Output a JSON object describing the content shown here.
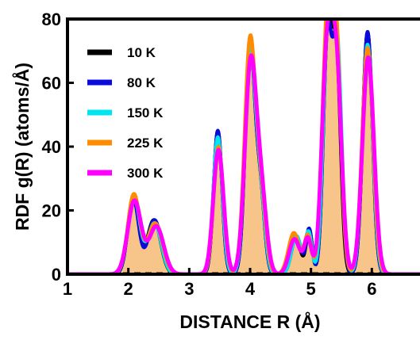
{
  "chart_data": {
    "type": "area",
    "xlabel": "DISTANCE R (Å)",
    "ylabel": "RDF g(R) (atoms/Å)",
    "xlim": [
      1,
      6.5
    ],
    "ylim": [
      0,
      80
    ],
    "x_ticks": [
      "1",
      "2",
      "3",
      "4",
      "5",
      "6"
    ],
    "y_ticks": [
      "0",
      "20",
      "40",
      "60",
      "80"
    ],
    "grid": false,
    "legend_position": "top-left",
    "fill_color": "#f7c48a",
    "series": [
      {
        "name": "10 K",
        "color": "#000000",
        "peaks": [
          [
            2.08,
            24,
            0.09
          ],
          [
            2.42,
            17,
            0.11
          ],
          [
            3.47,
            45,
            0.07
          ],
          [
            4.0,
            72,
            0.08
          ],
          [
            4.17,
            25,
            0.07
          ],
          [
            4.75,
            12,
            0.08
          ],
          [
            4.97,
            14,
            0.05
          ],
          [
            5.27,
            73,
            0.07
          ],
          [
            5.42,
            66,
            0.07
          ],
          [
            5.93,
            76,
            0.08
          ]
        ]
      },
      {
        "name": "80 K",
        "color": "#0a0adc",
        "peaks": [
          [
            2.08,
            24,
            0.09
          ],
          [
            2.43,
            17,
            0.11
          ],
          [
            3.47,
            45,
            0.07
          ],
          [
            4.0,
            72,
            0.08
          ],
          [
            4.17,
            25,
            0.07
          ],
          [
            4.76,
            12,
            0.08
          ],
          [
            4.97,
            14,
            0.05
          ],
          [
            5.27,
            73,
            0.07
          ],
          [
            5.43,
            70,
            0.07
          ],
          [
            5.93,
            76,
            0.08
          ]
        ]
      },
      {
        "name": "150 K",
        "color": "#00e5ee",
        "peaks": [
          [
            2.09,
            24,
            0.1
          ],
          [
            2.43,
            16,
            0.11
          ],
          [
            3.47,
            43,
            0.075
          ],
          [
            4.0,
            70,
            0.085
          ],
          [
            4.17,
            24,
            0.075
          ],
          [
            4.76,
            12,
            0.08
          ],
          [
            4.96,
            13,
            0.055
          ],
          [
            5.27,
            72,
            0.075
          ],
          [
            5.43,
            70,
            0.075
          ],
          [
            5.93,
            72,
            0.085
          ]
        ]
      },
      {
        "name": "225 K",
        "color": "#ff8c00",
        "peaks": [
          [
            2.09,
            25,
            0.1
          ],
          [
            2.44,
            16,
            0.12
          ],
          [
            3.48,
            40,
            0.08
          ],
          [
            4.0,
            73,
            0.09
          ],
          [
            4.18,
            23,
            0.08
          ],
          [
            4.72,
            13,
            0.09
          ],
          [
            4.95,
            12,
            0.06
          ],
          [
            5.26,
            73,
            0.08
          ],
          [
            5.41,
            73,
            0.08
          ],
          [
            5.93,
            71,
            0.09
          ]
        ]
      },
      {
        "name": "300 K",
        "color": "#ff00ff",
        "peaks": [
          [
            2.1,
            23,
            0.11
          ],
          [
            2.46,
            15,
            0.12
          ],
          [
            3.48,
            39,
            0.085
          ],
          [
            4.01,
            66,
            0.095
          ],
          [
            4.19,
            22,
            0.085
          ],
          [
            4.73,
            11,
            0.09
          ],
          [
            4.95,
            11,
            0.06
          ],
          [
            5.26,
            66,
            0.085
          ],
          [
            5.42,
            62,
            0.085
          ],
          [
            5.94,
            68,
            0.095
          ]
        ]
      }
    ]
  }
}
